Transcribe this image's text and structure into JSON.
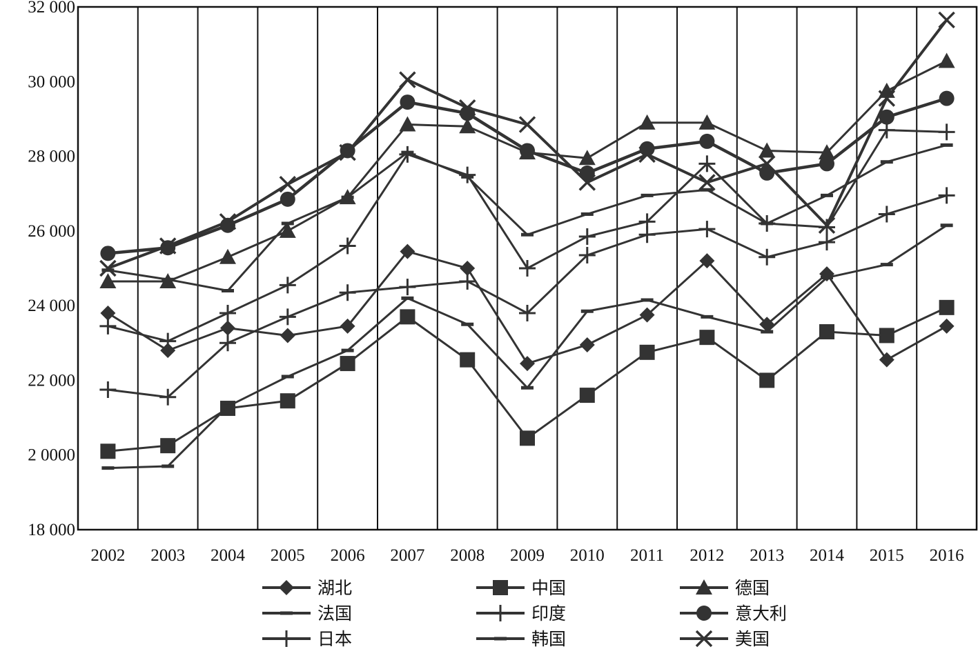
{
  "chart_data": {
    "type": "line",
    "title": "",
    "xlabel": "",
    "ylabel": "",
    "x": [
      "2002",
      "2003",
      "2004",
      "2005",
      "2006",
      "2007",
      "2008",
      "2009",
      "2010",
      "2011",
      "2012",
      "2013",
      "2014",
      "2015",
      "2016"
    ],
    "ylim": [
      18000,
      32000
    ],
    "yticks": [
      18000,
      20000,
      22000,
      24000,
      26000,
      28000,
      30000,
      32000
    ],
    "ytick_labels": [
      "18 000",
      "2 0000",
      "22 000",
      "24 000",
      "26 000",
      "28 000",
      "30 000",
      "32 000"
    ],
    "grid": "vertical",
    "legend_position": "bottom",
    "series": [
      {
        "name": "湖北",
        "marker": "diamond",
        "values": [
          23800,
          22800,
          23400,
          23200,
          23450,
          25450,
          25000,
          22450,
          22950,
          23750,
          25200,
          23500,
          24850,
          22550,
          23450
        ]
      },
      {
        "name": "中国",
        "marker": "square",
        "values": [
          20100,
          20250,
          21250,
          21450,
          22450,
          23700,
          22550,
          20450,
          21600,
          22750,
          23150,
          22000,
          23300,
          23200,
          23950
        ]
      },
      {
        "name": "德国",
        "marker": "triangle",
        "values": [
          24650,
          24650,
          25300,
          26000,
          26900,
          28850,
          28800,
          28100,
          27950,
          28900,
          28900,
          28150,
          28100,
          29750,
          30550
        ]
      },
      {
        "name": "法国",
        "marker": "none",
        "values": [
          24950,
          24700,
          24400,
          26200,
          26900,
          28100,
          27450,
          25900,
          26450,
          26950,
          27100,
          26200,
          26950,
          27850,
          28300
        ]
      },
      {
        "name": "印度",
        "marker": "plus",
        "values": [
          23450,
          23050,
          23800,
          24550,
          25600,
          28050,
          27500,
          25000,
          25850,
          26250,
          27800,
          26200,
          26100,
          28700,
          28650
        ]
      },
      {
        "name": "意大利",
        "marker": "circle",
        "values": [
          25400,
          25550,
          26150,
          26850,
          28150,
          29450,
          29150,
          28150,
          27550,
          28200,
          28400,
          27550,
          27800,
          29050,
          29550
        ]
      },
      {
        "name": "日本",
        "marker": "plus",
        "values": [
          21750,
          21550,
          23000,
          23700,
          24350,
          24500,
          24650,
          23800,
          25350,
          25900,
          26050,
          25300,
          25700,
          26450,
          26950
        ]
      },
      {
        "name": "韩国",
        "marker": "none",
        "values": [
          19650,
          19700,
          21300,
          22100,
          22800,
          24200,
          23500,
          21800,
          23850,
          24150,
          23700,
          23300,
          24750,
          25100,
          26150
        ]
      },
      {
        "name": "美国",
        "marker": "x",
        "values": [
          25000,
          25600,
          26250,
          27250,
          28100,
          30050,
          29300,
          28850,
          27300,
          28050,
          27300,
          27800,
          26150,
          29550,
          31650
        ]
      }
    ]
  }
}
